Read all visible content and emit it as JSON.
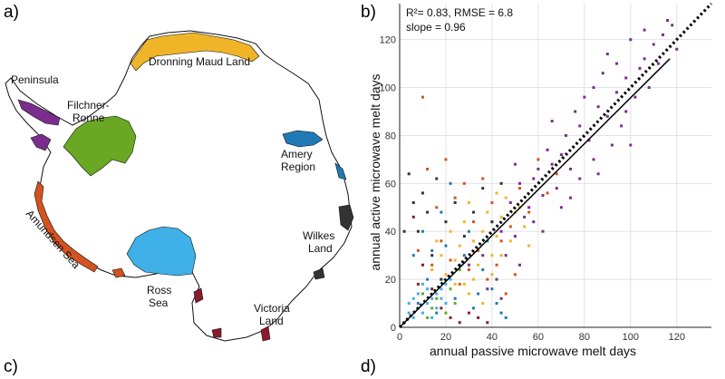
{
  "panels": {
    "a": "a)",
    "b": "b)",
    "c": "c)",
    "d": "d)"
  },
  "map": {
    "regions": [
      {
        "id": "peninsula",
        "label": "Peninsula",
        "color": "#7b2d8e"
      },
      {
        "id": "filchner",
        "label": "Filchner-\nRonne",
        "color": "#6aa823"
      },
      {
        "id": "dronning",
        "label": "Dronning Maud Land",
        "color": "#f0b429"
      },
      {
        "id": "amery",
        "label": "Amery\nRegion",
        "color": "#2079b4"
      },
      {
        "id": "wilkes",
        "label": "Wilkes\nLand",
        "color": "#333333"
      },
      {
        "id": "victoria",
        "label": "Victoria\nLand",
        "color": "#8b1a2b"
      },
      {
        "id": "ross",
        "label": "Ross\nSea",
        "color": "#3fb0e8"
      },
      {
        "id": "amundsen",
        "label": "Amundsen Sea",
        "color": "#d4521f"
      }
    ]
  },
  "stats": {
    "line1": "R²= 0.83, RMSE = 6.8",
    "line2": "slope = 0.96"
  },
  "chart_data": {
    "type": "scatter",
    "xlabel": "annual passive microwave melt days",
    "ylabel": "annual active microwave melt days",
    "xlim": [
      0,
      135
    ],
    "ylim": [
      0,
      135
    ],
    "xticks": [
      0,
      20,
      40,
      60,
      80,
      100,
      120
    ],
    "yticks": [
      0,
      20,
      40,
      60,
      80,
      100,
      120
    ],
    "grid": true,
    "lines": [
      {
        "kind": "one-to-one",
        "style": "dotted",
        "x": [
          0,
          135
        ],
        "y": [
          0,
          135
        ]
      },
      {
        "kind": "regression",
        "style": "solid",
        "x": [
          0,
          117
        ],
        "y": [
          0,
          112
        ]
      }
    ],
    "series": [
      {
        "region": "peninsula",
        "color": "#7b2d8e",
        "points": [
          [
            58,
            62
          ],
          [
            62,
            55
          ],
          [
            66,
            68
          ],
          [
            70,
            72
          ],
          [
            74,
            66
          ],
          [
            78,
            84
          ],
          [
            82,
            78
          ],
          [
            86,
            92
          ],
          [
            90,
            88
          ],
          [
            94,
            98
          ],
          [
            98,
            104
          ],
          [
            102,
            96
          ],
          [
            106,
            112
          ],
          [
            110,
            118
          ],
          [
            114,
            122
          ],
          [
            118,
            126
          ],
          [
            84,
            70
          ],
          [
            76,
            90
          ],
          [
            88,
            106
          ],
          [
            96,
            84
          ],
          [
            100,
            120
          ],
          [
            108,
            100
          ],
          [
            72,
            80
          ],
          [
            64,
            74
          ],
          [
            56,
            50
          ],
          [
            52,
            60
          ],
          [
            80,
            96
          ],
          [
            92,
            76
          ],
          [
            104,
            108
          ],
          [
            112,
            110
          ],
          [
            116,
            128
          ],
          [
            68,
            58
          ],
          [
            60,
            66
          ],
          [
            44,
            40
          ],
          [
            48,
            52
          ],
          [
            54,
            46
          ],
          [
            46,
            30
          ],
          [
            50,
            38
          ],
          [
            40,
            44
          ],
          [
            42,
            20
          ],
          [
            36,
            30
          ],
          [
            30,
            26
          ],
          [
            38,
            16
          ],
          [
            44,
            12
          ],
          [
            52,
            26
          ],
          [
            86,
            64
          ],
          [
            94,
            110
          ],
          [
            120,
            116
          ],
          [
            98,
            90
          ],
          [
            74,
            54
          ],
          [
            66,
            86
          ],
          [
            100,
            76
          ],
          [
            90,
            114
          ],
          [
            84,
            100
          ],
          [
            106,
            124
          ],
          [
            78,
            62
          ],
          [
            58,
            44
          ],
          [
            50,
            68
          ],
          [
            62,
            40
          ],
          [
            70,
            50
          ]
        ]
      },
      {
        "region": "filchner",
        "color": "#6aa823",
        "points": [
          [
            10,
            14
          ],
          [
            14,
            8
          ],
          [
            18,
            20
          ],
          [
            22,
            16
          ],
          [
            26,
            24
          ],
          [
            12,
            4
          ],
          [
            16,
            12
          ],
          [
            20,
            6
          ],
          [
            24,
            10
          ]
        ]
      },
      {
        "region": "dronning",
        "color": "#f0b429",
        "points": [
          [
            20,
            22
          ],
          [
            24,
            28
          ],
          [
            28,
            18
          ],
          [
            32,
            36
          ],
          [
            36,
            40
          ],
          [
            40,
            30
          ],
          [
            44,
            46
          ],
          [
            30,
            14
          ],
          [
            26,
            34
          ],
          [
            34,
            26
          ],
          [
            38,
            48
          ],
          [
            42,
            38
          ],
          [
            46,
            54
          ],
          [
            22,
            40
          ],
          [
            18,
            30
          ],
          [
            14,
            24
          ],
          [
            48,
            36
          ],
          [
            50,
            48
          ],
          [
            54,
            42
          ],
          [
            28,
            44
          ],
          [
            32,
            20
          ],
          [
            36,
            10
          ],
          [
            40,
            22
          ],
          [
            44,
            30
          ],
          [
            16,
            36
          ],
          [
            24,
            18
          ],
          [
            30,
            52
          ],
          [
            42,
            56
          ],
          [
            52,
            50
          ],
          [
            56,
            34
          ]
        ]
      },
      {
        "region": "amery",
        "color": "#2079b4",
        "points": [
          [
            8,
            10
          ],
          [
            12,
            20
          ],
          [
            16,
            6
          ],
          [
            20,
            34
          ],
          [
            24,
            12
          ],
          [
            28,
            30
          ],
          [
            32,
            8
          ],
          [
            36,
            24
          ],
          [
            40,
            16
          ],
          [
            44,
            6
          ],
          [
            14,
            32
          ],
          [
            18,
            48
          ],
          [
            22,
            60
          ],
          [
            26,
            26
          ],
          [
            30,
            40
          ],
          [
            34,
            14
          ],
          [
            6,
            30
          ],
          [
            10,
            40
          ],
          [
            38,
            36
          ],
          [
            42,
            10
          ],
          [
            46,
            4
          ]
        ]
      },
      {
        "region": "wilkes",
        "color": "#333333",
        "points": [
          [
            4,
            64
          ],
          [
            6,
            52
          ],
          [
            8,
            40
          ],
          [
            10,
            56
          ],
          [
            12,
            48
          ],
          [
            14,
            30
          ],
          [
            16,
            62
          ],
          [
            20,
            44
          ],
          [
            24,
            52
          ],
          [
            28,
            38
          ],
          [
            32,
            48
          ],
          [
            36,
            58
          ],
          [
            40,
            44
          ],
          [
            44,
            60
          ],
          [
            2,
            40
          ],
          [
            18,
            20
          ]
        ]
      },
      {
        "region": "victoria",
        "color": "#8b1a2b",
        "points": [
          [
            6,
            46
          ],
          [
            10,
            26
          ],
          [
            14,
            16
          ],
          [
            18,
            8
          ],
          [
            22,
            4
          ],
          [
            26,
            2
          ],
          [
            30,
            6
          ],
          [
            34,
            4
          ],
          [
            38,
            2
          ],
          [
            8,
            18
          ]
        ]
      },
      {
        "region": "ross",
        "color": "#3fb0e8",
        "points": [
          [
            2,
            2
          ],
          [
            4,
            6
          ],
          [
            6,
            4
          ],
          [
            8,
            8
          ],
          [
            10,
            6
          ],
          [
            12,
            10
          ],
          [
            14,
            12
          ],
          [
            16,
            14
          ],
          [
            18,
            16
          ],
          [
            20,
            18
          ],
          [
            4,
            10
          ],
          [
            8,
            14
          ],
          [
            12,
            16
          ],
          [
            16,
            8
          ],
          [
            20,
            10
          ],
          [
            6,
            12
          ],
          [
            10,
            18
          ],
          [
            14,
            4
          ],
          [
            18,
            12
          ],
          [
            22,
            20
          ]
        ]
      },
      {
        "region": "amundsen",
        "color": "#d4521f",
        "points": [
          [
            10,
            96
          ],
          [
            12,
            66
          ],
          [
            16,
            50
          ],
          [
            20,
            70
          ],
          [
            24,
            54
          ],
          [
            28,
            60
          ],
          [
            32,
            44
          ],
          [
            36,
            62
          ],
          [
            40,
            52
          ],
          [
            44,
            36
          ],
          [
            48,
            42
          ],
          [
            52,
            58
          ],
          [
            56,
            48
          ],
          [
            60,
            70
          ],
          [
            64,
            56
          ],
          [
            68,
            64
          ],
          [
            18,
            36
          ],
          [
            22,
            28
          ],
          [
            26,
            18
          ],
          [
            30,
            24
          ],
          [
            34,
            32
          ],
          [
            38,
            20
          ],
          [
            42,
            26
          ],
          [
            46,
            14
          ],
          [
            50,
            22
          ],
          [
            14,
            26
          ],
          [
            8,
            32
          ]
        ]
      }
    ]
  }
}
